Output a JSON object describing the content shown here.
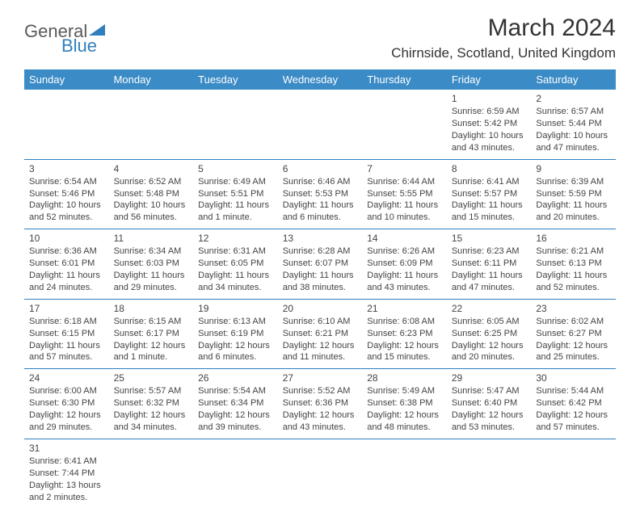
{
  "logo": {
    "part1": "General",
    "part2": "Blue"
  },
  "title": "March 2024",
  "location": "Chirnside, Scotland, United Kingdom",
  "colors": {
    "header_bg": "#3b8bc6",
    "header_text": "#ffffff",
    "border": "#2f7fbf",
    "text": "#444444",
    "logo_gray": "#5a5a5a",
    "logo_blue": "#2f7fbf"
  },
  "weekdays": [
    "Sunday",
    "Monday",
    "Tuesday",
    "Wednesday",
    "Thursday",
    "Friday",
    "Saturday"
  ],
  "weeks": [
    [
      null,
      null,
      null,
      null,
      null,
      {
        "n": "1",
        "sr": "Sunrise: 6:59 AM",
        "ss": "Sunset: 5:42 PM",
        "d1": "Daylight: 10 hours",
        "d2": "and 43 minutes."
      },
      {
        "n": "2",
        "sr": "Sunrise: 6:57 AM",
        "ss": "Sunset: 5:44 PM",
        "d1": "Daylight: 10 hours",
        "d2": "and 47 minutes."
      }
    ],
    [
      {
        "n": "3",
        "sr": "Sunrise: 6:54 AM",
        "ss": "Sunset: 5:46 PM",
        "d1": "Daylight: 10 hours",
        "d2": "and 52 minutes."
      },
      {
        "n": "4",
        "sr": "Sunrise: 6:52 AM",
        "ss": "Sunset: 5:48 PM",
        "d1": "Daylight: 10 hours",
        "d2": "and 56 minutes."
      },
      {
        "n": "5",
        "sr": "Sunrise: 6:49 AM",
        "ss": "Sunset: 5:51 PM",
        "d1": "Daylight: 11 hours",
        "d2": "and 1 minute."
      },
      {
        "n": "6",
        "sr": "Sunrise: 6:46 AM",
        "ss": "Sunset: 5:53 PM",
        "d1": "Daylight: 11 hours",
        "d2": "and 6 minutes."
      },
      {
        "n": "7",
        "sr": "Sunrise: 6:44 AM",
        "ss": "Sunset: 5:55 PM",
        "d1": "Daylight: 11 hours",
        "d2": "and 10 minutes."
      },
      {
        "n": "8",
        "sr": "Sunrise: 6:41 AM",
        "ss": "Sunset: 5:57 PM",
        "d1": "Daylight: 11 hours",
        "d2": "and 15 minutes."
      },
      {
        "n": "9",
        "sr": "Sunrise: 6:39 AM",
        "ss": "Sunset: 5:59 PM",
        "d1": "Daylight: 11 hours",
        "d2": "and 20 minutes."
      }
    ],
    [
      {
        "n": "10",
        "sr": "Sunrise: 6:36 AM",
        "ss": "Sunset: 6:01 PM",
        "d1": "Daylight: 11 hours",
        "d2": "and 24 minutes."
      },
      {
        "n": "11",
        "sr": "Sunrise: 6:34 AM",
        "ss": "Sunset: 6:03 PM",
        "d1": "Daylight: 11 hours",
        "d2": "and 29 minutes."
      },
      {
        "n": "12",
        "sr": "Sunrise: 6:31 AM",
        "ss": "Sunset: 6:05 PM",
        "d1": "Daylight: 11 hours",
        "d2": "and 34 minutes."
      },
      {
        "n": "13",
        "sr": "Sunrise: 6:28 AM",
        "ss": "Sunset: 6:07 PM",
        "d1": "Daylight: 11 hours",
        "d2": "and 38 minutes."
      },
      {
        "n": "14",
        "sr": "Sunrise: 6:26 AM",
        "ss": "Sunset: 6:09 PM",
        "d1": "Daylight: 11 hours",
        "d2": "and 43 minutes."
      },
      {
        "n": "15",
        "sr": "Sunrise: 6:23 AM",
        "ss": "Sunset: 6:11 PM",
        "d1": "Daylight: 11 hours",
        "d2": "and 47 minutes."
      },
      {
        "n": "16",
        "sr": "Sunrise: 6:21 AM",
        "ss": "Sunset: 6:13 PM",
        "d1": "Daylight: 11 hours",
        "d2": "and 52 minutes."
      }
    ],
    [
      {
        "n": "17",
        "sr": "Sunrise: 6:18 AM",
        "ss": "Sunset: 6:15 PM",
        "d1": "Daylight: 11 hours",
        "d2": "and 57 minutes."
      },
      {
        "n": "18",
        "sr": "Sunrise: 6:15 AM",
        "ss": "Sunset: 6:17 PM",
        "d1": "Daylight: 12 hours",
        "d2": "and 1 minute."
      },
      {
        "n": "19",
        "sr": "Sunrise: 6:13 AM",
        "ss": "Sunset: 6:19 PM",
        "d1": "Daylight: 12 hours",
        "d2": "and 6 minutes."
      },
      {
        "n": "20",
        "sr": "Sunrise: 6:10 AM",
        "ss": "Sunset: 6:21 PM",
        "d1": "Daylight: 12 hours",
        "d2": "and 11 minutes."
      },
      {
        "n": "21",
        "sr": "Sunrise: 6:08 AM",
        "ss": "Sunset: 6:23 PM",
        "d1": "Daylight: 12 hours",
        "d2": "and 15 minutes."
      },
      {
        "n": "22",
        "sr": "Sunrise: 6:05 AM",
        "ss": "Sunset: 6:25 PM",
        "d1": "Daylight: 12 hours",
        "d2": "and 20 minutes."
      },
      {
        "n": "23",
        "sr": "Sunrise: 6:02 AM",
        "ss": "Sunset: 6:27 PM",
        "d1": "Daylight: 12 hours",
        "d2": "and 25 minutes."
      }
    ],
    [
      {
        "n": "24",
        "sr": "Sunrise: 6:00 AM",
        "ss": "Sunset: 6:30 PM",
        "d1": "Daylight: 12 hours",
        "d2": "and 29 minutes."
      },
      {
        "n": "25",
        "sr": "Sunrise: 5:57 AM",
        "ss": "Sunset: 6:32 PM",
        "d1": "Daylight: 12 hours",
        "d2": "and 34 minutes."
      },
      {
        "n": "26",
        "sr": "Sunrise: 5:54 AM",
        "ss": "Sunset: 6:34 PM",
        "d1": "Daylight: 12 hours",
        "d2": "and 39 minutes."
      },
      {
        "n": "27",
        "sr": "Sunrise: 5:52 AM",
        "ss": "Sunset: 6:36 PM",
        "d1": "Daylight: 12 hours",
        "d2": "and 43 minutes."
      },
      {
        "n": "28",
        "sr": "Sunrise: 5:49 AM",
        "ss": "Sunset: 6:38 PM",
        "d1": "Daylight: 12 hours",
        "d2": "and 48 minutes."
      },
      {
        "n": "29",
        "sr": "Sunrise: 5:47 AM",
        "ss": "Sunset: 6:40 PM",
        "d1": "Daylight: 12 hours",
        "d2": "and 53 minutes."
      },
      {
        "n": "30",
        "sr": "Sunrise: 5:44 AM",
        "ss": "Sunset: 6:42 PM",
        "d1": "Daylight: 12 hours",
        "d2": "and 57 minutes."
      }
    ],
    [
      {
        "n": "31",
        "sr": "Sunrise: 6:41 AM",
        "ss": "Sunset: 7:44 PM",
        "d1": "Daylight: 13 hours",
        "d2": "and 2 minutes."
      },
      null,
      null,
      null,
      null,
      null,
      null
    ]
  ]
}
